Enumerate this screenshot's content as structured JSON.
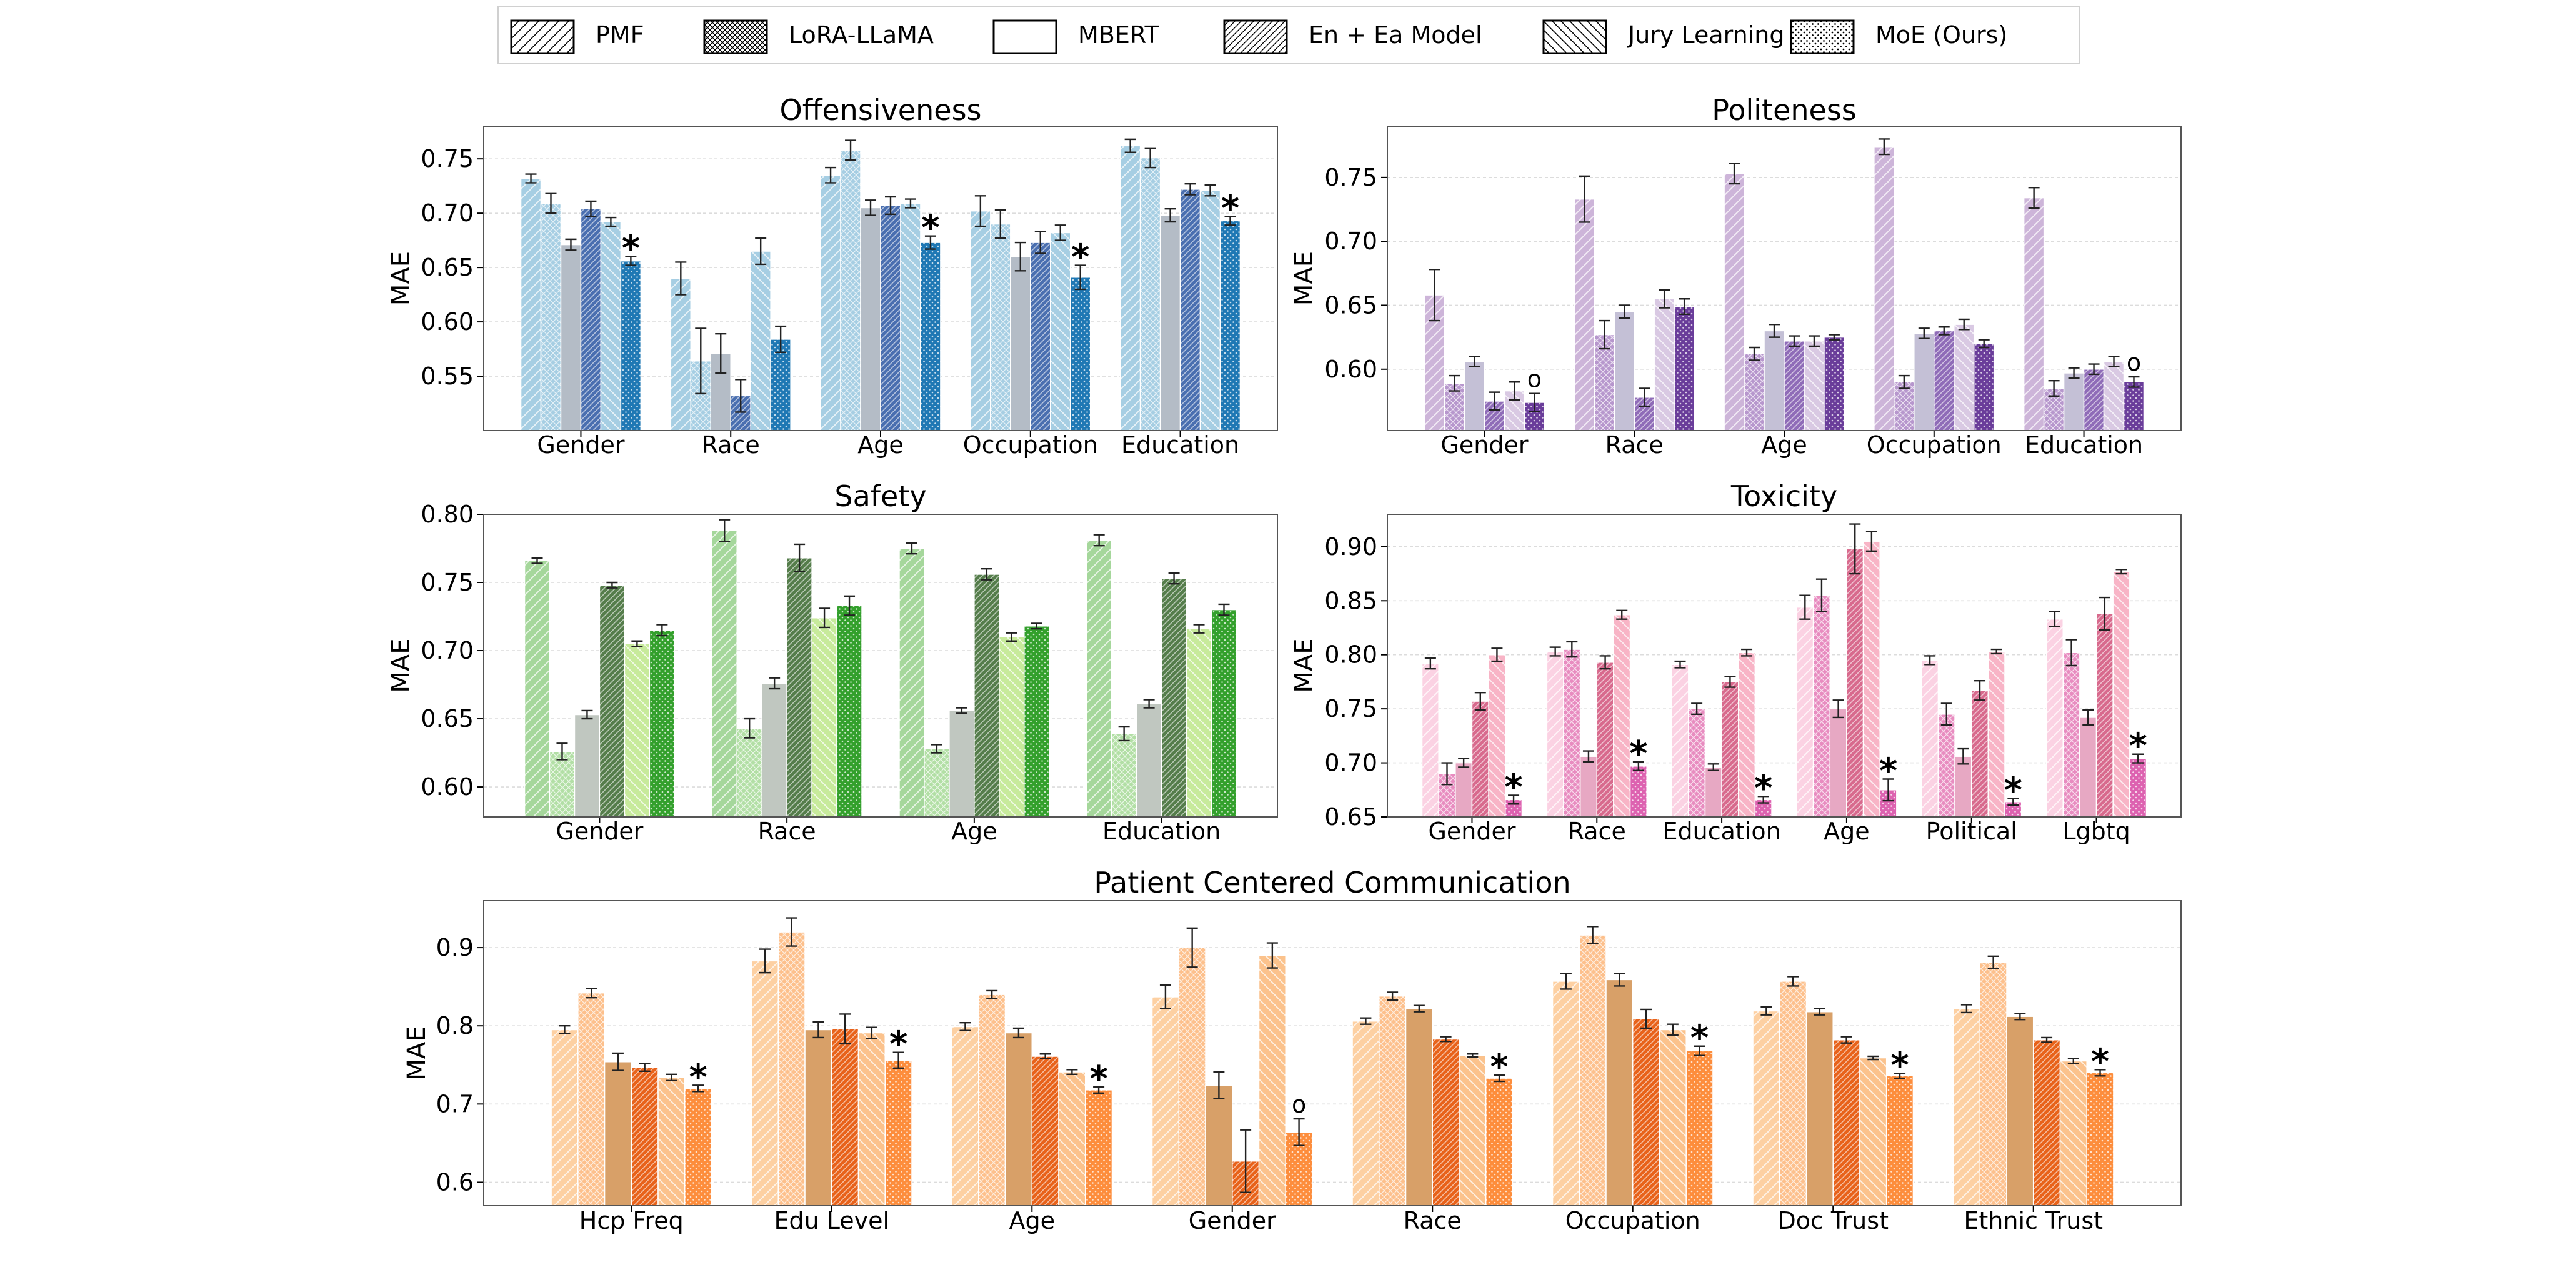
{
  "legend": {
    "items": [
      {
        "label": "PMF",
        "pattern": "hatch-fwd"
      },
      {
        "label": "LoRA-LLaMA",
        "pattern": "crosshatch"
      },
      {
        "label": "MBERT",
        "pattern": "none"
      },
      {
        "label": "En + Ea Model",
        "pattern": "hatch-fwd-dense"
      },
      {
        "label": "Jury Learning",
        "pattern": "hatch-back"
      },
      {
        "label": "MoE (Ours)",
        "pattern": "dots"
      }
    ]
  },
  "chart_data": [
    {
      "id": "offensiveness",
      "type": "bar",
      "title": "Offensiveness",
      "ylabel": "MAE",
      "ylim": [
        0.5,
        0.78
      ],
      "yticks": [
        "0.55",
        "0.60",
        "0.65",
        "0.70",
        "0.75"
      ],
      "categories": [
        "Gender",
        "Race",
        "Age",
        "Occupation",
        "Education"
      ],
      "colors": [
        "#a6cee3",
        "#a6cee3",
        "#b4bcc6",
        "#4a6fb0",
        "#a6cee3",
        "#1f78b4"
      ],
      "series": [
        {
          "name": "PMF",
          "values": [
            0.732,
            0.64,
            0.735,
            0.702,
            0.762
          ],
          "errors": [
            0.004,
            0.015,
            0.007,
            0.014,
            0.006
          ]
        },
        {
          "name": "LoRA-LLaMA",
          "values": [
            0.709,
            0.564,
            0.758,
            0.69,
            0.751
          ],
          "errors": [
            0.009,
            0.03,
            0.009,
            0.013,
            0.009
          ]
        },
        {
          "name": "MBERT",
          "values": [
            0.671,
            0.571,
            0.705,
            0.66,
            0.698
          ],
          "errors": [
            0.005,
            0.018,
            0.007,
            0.013,
            0.006
          ]
        },
        {
          "name": "En + Ea Model",
          "values": [
            0.704,
            0.532,
            0.707,
            0.673,
            0.722
          ],
          "errors": [
            0.007,
            0.015,
            0.008,
            0.01,
            0.005
          ]
        },
        {
          "name": "Jury Learning",
          "values": [
            0.692,
            0.665,
            0.709,
            0.682,
            0.721
          ],
          "errors": [
            0.004,
            0.012,
            0.004,
            0.007,
            0.005
          ]
        },
        {
          "name": "MoE (Ours)",
          "values": [
            0.656,
            0.584,
            0.673,
            0.641,
            0.693
          ],
          "errors": [
            0.004,
            0.012,
            0.006,
            0.011,
            0.004
          ]
        }
      ],
      "markers": [
        "*",
        "",
        "*",
        "*",
        "*"
      ]
    },
    {
      "id": "politeness",
      "type": "bar",
      "title": "Politeness",
      "ylabel": "MAE",
      "ylim": [
        0.552,
        0.79
      ],
      "yticks": [
        "0.60",
        "0.65",
        "0.70",
        "0.75"
      ],
      "categories": [
        "Gender",
        "Race",
        "Age",
        "Occupation",
        "Education"
      ],
      "colors": [
        "#cdb5d9",
        "#b797cd",
        "#c4c0d6",
        "#8f6cb8",
        "#d9c9e3",
        "#6a3d9a"
      ],
      "series": [
        {
          "name": "PMF",
          "values": [
            0.658,
            0.733,
            0.753,
            0.774,
            0.734
          ],
          "errors": [
            0.02,
            0.018,
            0.008,
            0.006,
            0.008
          ]
        },
        {
          "name": "LoRA-LLaMA",
          "values": [
            0.589,
            0.627,
            0.612,
            0.59,
            0.585
          ],
          "errors": [
            0.006,
            0.011,
            0.005,
            0.005,
            0.006
          ]
        },
        {
          "name": "MBERT",
          "values": [
            0.606,
            0.645,
            0.63,
            0.628,
            0.597
          ],
          "errors": [
            0.004,
            0.005,
            0.005,
            0.004,
            0.004
          ]
        },
        {
          "name": "En + Ea Model",
          "values": [
            0.575,
            0.578,
            0.622,
            0.63,
            0.6
          ],
          "errors": [
            0.007,
            0.007,
            0.004,
            0.003,
            0.004
          ]
        },
        {
          "name": "Jury Learning",
          "values": [
            0.583,
            0.655,
            0.622,
            0.635,
            0.606
          ],
          "errors": [
            0.007,
            0.007,
            0.004,
            0.004,
            0.004
          ]
        },
        {
          "name": "MoE (Ours)",
          "values": [
            0.574,
            0.649,
            0.625,
            0.62,
            0.59
          ],
          "errors": [
            0.007,
            0.006,
            0.002,
            0.003,
            0.004
          ]
        }
      ],
      "markers": [
        "o",
        "",
        "",
        "",
        "o"
      ]
    },
    {
      "id": "safety",
      "type": "bar",
      "title": "Safety",
      "ylabel": "MAE",
      "ylim": [
        0.578,
        0.8
      ],
      "yticks": [
        "0.60",
        "0.65",
        "0.70",
        "0.75",
        "0.80"
      ],
      "categories": [
        "Gender",
        "Race",
        "Age",
        "Education"
      ],
      "colors": [
        "#a5d79b",
        "#b2dfa5",
        "#c0c7c0",
        "#557d4b",
        "#c7ea9b",
        "#33a02c"
      ],
      "series": [
        {
          "name": "PMF",
          "values": [
            0.766,
            0.788,
            0.775,
            0.781
          ],
          "errors": [
            0.002,
            0.008,
            0.004,
            0.004
          ]
        },
        {
          "name": "LoRA-LLaMA",
          "values": [
            0.626,
            0.643,
            0.628,
            0.639
          ],
          "errors": [
            0.006,
            0.007,
            0.003,
            0.005
          ]
        },
        {
          "name": "MBERT",
          "values": [
            0.653,
            0.676,
            0.656,
            0.661
          ],
          "errors": [
            0.003,
            0.004,
            0.002,
            0.003
          ]
        },
        {
          "name": "En + Ea Model",
          "values": [
            0.748,
            0.768,
            0.756,
            0.753
          ],
          "errors": [
            0.002,
            0.01,
            0.004,
            0.004
          ]
        },
        {
          "name": "Jury Learning",
          "values": [
            0.705,
            0.724,
            0.71,
            0.716
          ],
          "errors": [
            0.002,
            0.007,
            0.003,
            0.003
          ]
        },
        {
          "name": "MoE (Ours)",
          "values": [
            0.715,
            0.733,
            0.718,
            0.73
          ],
          "errors": [
            0.004,
            0.007,
            0.002,
            0.004
          ]
        }
      ],
      "markers": [
        "",
        "",
        "",
        ""
      ]
    },
    {
      "id": "toxicity",
      "type": "bar",
      "title": "Toxicity",
      "ylabel": "MAE",
      "ylim": [
        0.65,
        0.93
      ],
      "yticks": [
        "0.65",
        "0.70",
        "0.75",
        "0.80",
        "0.85",
        "0.90"
      ],
      "categories": [
        "Gender",
        "Race",
        "Education",
        "Age",
        "Political",
        "Lgbtq"
      ],
      "colors": [
        "#fbd2e3",
        "#e88cc0",
        "#e7a8c3",
        "#d86a8d",
        "#f8b4c6",
        "#dd62b0"
      ],
      "series": [
        {
          "name": "PMF",
          "values": [
            0.792,
            0.803,
            0.791,
            0.844,
            0.795,
            0.833
          ],
          "errors": [
            0.005,
            0.004,
            0.003,
            0.011,
            0.004,
            0.007
          ]
        },
        {
          "name": "LoRA-LLaMA",
          "values": [
            0.69,
            0.805,
            0.75,
            0.855,
            0.745,
            0.802
          ],
          "errors": [
            0.01,
            0.007,
            0.005,
            0.015,
            0.01,
            0.012
          ]
        },
        {
          "name": "MBERT",
          "values": [
            0.7,
            0.706,
            0.696,
            0.75,
            0.706,
            0.742
          ],
          "errors": [
            0.004,
            0.005,
            0.003,
            0.008,
            0.007,
            0.007
          ]
        },
        {
          "name": "En + Ea Model",
          "values": [
            0.757,
            0.793,
            0.775,
            0.898,
            0.767,
            0.838
          ],
          "errors": [
            0.008,
            0.006,
            0.005,
            0.023,
            0.009,
            0.015
          ]
        },
        {
          "name": "Jury Learning",
          "values": [
            0.8,
            0.837,
            0.802,
            0.905,
            0.803,
            0.877
          ],
          "errors": [
            0.006,
            0.004,
            0.003,
            0.009,
            0.002,
            0.002
          ]
        },
        {
          "name": "MoE (Ours)",
          "values": [
            0.666,
            0.697,
            0.666,
            0.675,
            0.664,
            0.704
          ],
          "errors": [
            0.004,
            0.004,
            0.003,
            0.01,
            0.003,
            0.004
          ]
        }
      ],
      "markers": [
        "*",
        "*",
        "*",
        "*",
        "*",
        "*"
      ]
    },
    {
      "id": "pcc",
      "type": "bar",
      "title": "Patient Centered Communication",
      "ylabel": "MAE",
      "ylim": [
        0.57,
        0.96
      ],
      "yticks": [
        "0.6",
        "0.7",
        "0.8",
        "0.9"
      ],
      "categories": [
        "Hcp Freq",
        "Edu Level",
        "Age",
        "Gender",
        "Race",
        "Occupation",
        "Doc Trust",
        "Ethnic Trust"
      ],
      "colors": [
        "#fdd0a2",
        "#fdc08c",
        "#d8a068",
        "#e8621a",
        "#fbc28c",
        "#fd8d3c"
      ],
      "series": [
        {
          "name": "PMF",
          "values": [
            0.795,
            0.883,
            0.799,
            0.837,
            0.806,
            0.857,
            0.819,
            0.822
          ],
          "errors": [
            0.005,
            0.015,
            0.005,
            0.015,
            0.004,
            0.01,
            0.005,
            0.005
          ]
        },
        {
          "name": "LoRA-LLaMA",
          "values": [
            0.842,
            0.92,
            0.84,
            0.9,
            0.838,
            0.916,
            0.857,
            0.881
          ],
          "errors": [
            0.006,
            0.018,
            0.005,
            0.025,
            0.005,
            0.011,
            0.006,
            0.008
          ]
        },
        {
          "name": "MBERT",
          "values": [
            0.754,
            0.795,
            0.791,
            0.724,
            0.822,
            0.859,
            0.818,
            0.812
          ],
          "errors": [
            0.011,
            0.01,
            0.006,
            0.017,
            0.004,
            0.008,
            0.004,
            0.004
          ]
        },
        {
          "name": "En + Ea Model",
          "values": [
            0.747,
            0.796,
            0.761,
            0.627,
            0.783,
            0.809,
            0.782,
            0.782
          ],
          "errors": [
            0.005,
            0.019,
            0.003,
            0.04,
            0.003,
            0.012,
            0.004,
            0.003
          ]
        },
        {
          "name": "Jury Learning",
          "values": [
            0.734,
            0.791,
            0.741,
            0.89,
            0.762,
            0.795,
            0.759,
            0.755
          ],
          "errors": [
            0.004,
            0.007,
            0.003,
            0.016,
            0.002,
            0.007,
            0.002,
            0.003
          ]
        },
        {
          "name": "MoE (Ours)",
          "values": [
            0.72,
            0.756,
            0.718,
            0.664,
            0.733,
            0.768,
            0.736,
            0.74
          ],
          "errors": [
            0.004,
            0.01,
            0.004,
            0.017,
            0.004,
            0.006,
            0.003,
            0.004
          ]
        }
      ],
      "markers": [
        "*",
        "*",
        "*",
        "o",
        "*",
        "*",
        "*",
        "*"
      ]
    }
  ]
}
